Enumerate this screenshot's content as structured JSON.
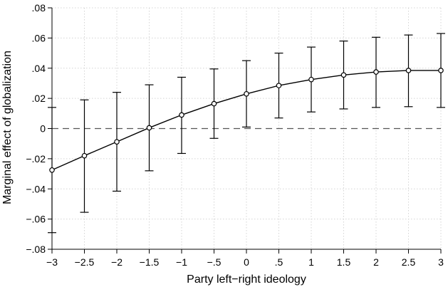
{
  "chart_data": {
    "type": "line",
    "title": "",
    "xlabel": "Party left−right ideology",
    "ylabel": "Marginal effect of globalization",
    "xlim": [
      -3,
      3
    ],
    "ylim": [
      -0.08,
      0.08
    ],
    "grid": true,
    "reference_line": {
      "y": 0,
      "style": "dashed"
    },
    "x_ticks": [
      {
        "value": -3,
        "label": "−3"
      },
      {
        "value": -2.5,
        "label": "−2.5"
      },
      {
        "value": -2,
        "label": "−2"
      },
      {
        "value": -1.5,
        "label": "−1.5"
      },
      {
        "value": -1,
        "label": "−1"
      },
      {
        "value": -0.5,
        "label": "−.5"
      },
      {
        "value": 0,
        "label": "0"
      },
      {
        "value": 0.5,
        "label": ".5"
      },
      {
        "value": 1,
        "label": "1"
      },
      {
        "value": 1.5,
        "label": "1.5"
      },
      {
        "value": 2,
        "label": "2"
      },
      {
        "value": 2.5,
        "label": "2.5"
      },
      {
        "value": 3,
        "label": "3"
      }
    ],
    "y_ticks": [
      {
        "value": 0.08,
        "label": ".08"
      },
      {
        "value": 0.06,
        "label": ".06"
      },
      {
        "value": 0.04,
        "label": ".04"
      },
      {
        "value": 0.02,
        "label": ".02"
      },
      {
        "value": 0,
        "label": "0"
      },
      {
        "value": -0.02,
        "label": "−.02"
      },
      {
        "value": -0.04,
        "label": "−.04"
      },
      {
        "value": -0.06,
        "label": "−.06"
      },
      {
        "value": -0.08,
        "label": "−.08"
      }
    ],
    "series": [
      {
        "x": [
          -3,
          -2.5,
          -2,
          -1.5,
          -1,
          -0.5,
          0,
          0.5,
          1,
          1.5,
          2,
          2.5,
          3
        ],
        "y": [
          -0.0275,
          -0.018,
          -0.0088,
          0.0005,
          0.009,
          0.0165,
          0.023,
          0.0285,
          0.0325,
          0.0355,
          0.0375,
          0.0385,
          0.0385
        ],
        "ci_low": [
          -0.069,
          -0.0555,
          -0.0415,
          -0.028,
          -0.0165,
          -0.0065,
          0.001,
          0.007,
          0.011,
          0.013,
          0.014,
          0.0145,
          0.014
        ],
        "ci_high": [
          0.014,
          0.019,
          0.024,
          0.029,
          0.034,
          0.0395,
          0.045,
          0.05,
          0.054,
          0.058,
          0.0605,
          0.062,
          0.063
        ]
      }
    ]
  }
}
